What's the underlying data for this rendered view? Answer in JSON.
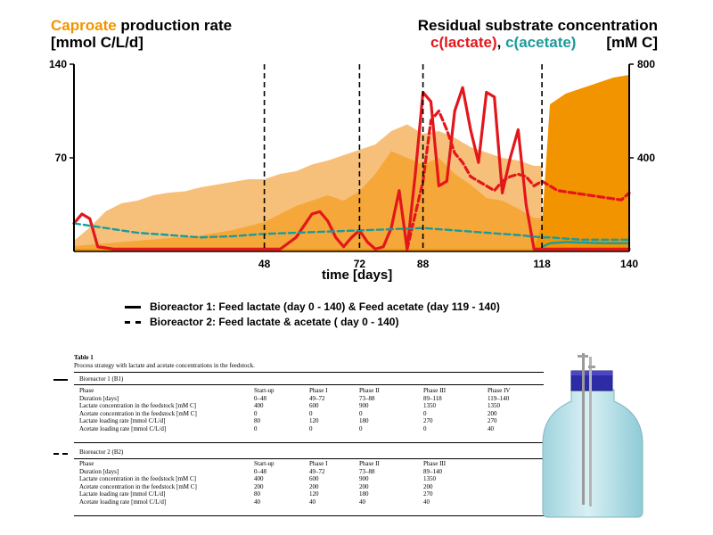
{
  "header": {
    "left_word_1": "Caproate",
    "left_word_2": " production rate",
    "left_unit": "[mmol C/L/d]",
    "right_title": "Residual substrate concentration",
    "right_lactate": "c(lactate)",
    "right_sep": ", ",
    "right_acetate": "c(acetate)",
    "right_unit": "[mM C]"
  },
  "legend": {
    "line1": "Bioreactor 1:   Feed lactate (day 0 - 140) &  Feed acetate (day 119 - 140)",
    "line2": "Bioreactor 2:   Feed lactate & acetate ( day 0 - 140)"
  },
  "colors": {
    "orange_dark": "#f29400",
    "orange_light": "#f7c07a",
    "orange_mid": "#f5a73a",
    "lactate": "#e3161b",
    "acetate": "#1a9b9b"
  },
  "chart_data": {
    "type": "area",
    "xlabel": "time [days]",
    "ylabel_left": "Caproate production rate [mmol C/L/d]",
    "ylabel_right": "Residual substrate concentration [mM C]",
    "xlim": [
      0,
      140
    ],
    "ylim_left": [
      0,
      140
    ],
    "ylim_right": [
      0,
      800
    ],
    "x_ticks": [
      48,
      72,
      88,
      118,
      140
    ],
    "y_left_ticks": [
      70,
      140
    ],
    "y_right_ticks": [
      400,
      800
    ],
    "phase_lines": [
      0,
      48,
      72,
      88,
      118
    ],
    "series": [
      {
        "name": "Caproate production rate",
        "axis": "left",
        "style": "area-light",
        "x": [
          0,
          4,
          8,
          12,
          16,
          20,
          24,
          28,
          32,
          36,
          40,
          44,
          48,
          52,
          56,
          60,
          64,
          68,
          72,
          76,
          80,
          84,
          88,
          92,
          96,
          100,
          104,
          108,
          112,
          116,
          118
        ],
        "y": [
          8,
          18,
          30,
          36,
          38,
          42,
          44,
          45,
          48,
          50,
          52,
          54,
          54,
          58,
          60,
          65,
          68,
          72,
          76,
          80,
          90,
          95,
          88,
          90,
          85,
          78,
          74,
          70,
          68,
          64,
          64
        ]
      },
      {
        "name": "Caproate production rate",
        "axis": "left",
        "style": "area-mid",
        "x": [
          0,
          8,
          16,
          24,
          32,
          40,
          48,
          56,
          64,
          68,
          72,
          76,
          80,
          84,
          88,
          92,
          96,
          100,
          104,
          108,
          112,
          116,
          118
        ],
        "y": [
          4,
          6,
          8,
          10,
          12,
          16,
          22,
          34,
          42,
          38,
          45,
          58,
          75,
          70,
          65,
          70,
          58,
          50,
          40,
          38,
          32,
          25,
          25
        ]
      },
      {
        "name": "Caproate production rate",
        "axis": "left",
        "style": "area-dark",
        "x": [
          0,
          20,
          40,
          48,
          52,
          56,
          60,
          64,
          68,
          72,
          76,
          80,
          84,
          88,
          92,
          96,
          100,
          104,
          108,
          112,
          116,
          118,
          120,
          124,
          128,
          132,
          136,
          140
        ],
        "y": [
          2,
          2,
          2,
          2,
          2,
          2,
          2,
          2,
          2,
          2,
          2,
          2,
          2,
          2,
          2,
          2,
          2,
          2,
          2,
          2,
          2,
          20,
          110,
          118,
          122,
          126,
          130,
          132
        ]
      },
      {
        "name": "c(lactate)",
        "axis": "right",
        "style": "solid",
        "x": [
          0,
          2,
          4,
          6,
          10,
          20,
          40,
          48,
          52,
          56,
          60,
          62,
          64,
          66,
          68,
          70,
          72,
          74,
          76,
          78,
          80,
          82,
          84,
          86,
          88,
          90,
          92,
          94,
          96,
          98,
          100,
          102,
          104,
          106,
          108,
          110,
          112,
          114,
          116,
          118,
          122,
          130,
          140
        ],
        "y": [
          120,
          160,
          140,
          20,
          10,
          10,
          10,
          10,
          10,
          60,
          160,
          170,
          130,
          60,
          20,
          60,
          90,
          40,
          10,
          20,
          100,
          260,
          10,
          320,
          680,
          640,
          280,
          300,
          600,
          700,
          520,
          380,
          680,
          660,
          250,
          400,
          520,
          200,
          10,
          10,
          10,
          10,
          10
        ]
      },
      {
        "name": "c(lactate)",
        "axis": "right",
        "style": "dashed",
        "x": [
          84,
          88,
          90,
          92,
          94,
          96,
          98,
          100,
          102,
          104,
          106,
          108,
          110,
          112,
          114,
          116,
          118,
          122,
          126,
          130,
          134,
          138,
          140
        ],
        "y": [
          10,
          300,
          560,
          600,
          520,
          420,
          380,
          320,
          300,
          280,
          260,
          300,
          320,
          330,
          320,
          280,
          300,
          260,
          250,
          240,
          230,
          220,
          250
        ]
      },
      {
        "name": "c(acetate)",
        "axis": "right",
        "style": "dashed",
        "x": [
          0,
          8,
          16,
          24,
          32,
          40,
          48,
          56,
          64,
          72,
          80,
          88,
          96,
          104,
          112,
          118,
          120,
          124,
          128,
          132,
          136,
          140
        ],
        "y": [
          120,
          100,
          80,
          70,
          60,
          65,
          75,
          80,
          85,
          90,
          95,
          100,
          90,
          80,
          70,
          60,
          60,
          55,
          50,
          50,
          50,
          50
        ]
      },
      {
        "name": "c(acetate)",
        "axis": "right",
        "style": "solid",
        "x": [
          118,
          120,
          124,
          128,
          132,
          136,
          140
        ],
        "y": [
          20,
          35,
          40,
          38,
          36,
          35,
          35
        ]
      }
    ]
  },
  "table": {
    "title": "Table 1",
    "caption": "Process strategy with lactate and acetate concentrations in the feedstock.",
    "br1_label": "Bioreactor 1 (B1)",
    "br2_label": "Bioreactor 2 (B2)",
    "br1_header": [
      "Phase",
      "Start-up",
      "Phase I",
      "Phase II",
      "Phase III",
      "Phase IV"
    ],
    "br1_rows": [
      [
        "Duration [days]",
        "0–48",
        "49–72",
        "73–88",
        "89–118",
        "119–140"
      ],
      [
        "Lactate concentration in the feedstock [mM C]",
        "400",
        "600",
        "900",
        "1350",
        "1350"
      ],
      [
        "Acetate concentration in the feedstock [mM C]",
        "0",
        "0",
        "0",
        "0",
        "200"
      ],
      [
        "Lactate loading rate [mmol C/L/d]",
        "80",
        "120",
        "180",
        "270",
        "270"
      ],
      [
        "Acetate loading rate [mmol C/L/d]",
        "0",
        "0",
        "0",
        "0",
        "40"
      ]
    ],
    "br2_header": [
      "Phase",
      "Start-up",
      "Phase I",
      "Phase II",
      "Phase III",
      ""
    ],
    "br2_rows": [
      [
        "Duration [days]",
        "0–48",
        "49–72",
        "73–88",
        "89–140",
        ""
      ],
      [
        "Lactate concentration in the feedstock [mM C]",
        "400",
        "600",
        "900",
        "1350",
        ""
      ],
      [
        "Acetate concentration in the feedstock [mM C]",
        "200",
        "200",
        "200",
        "200",
        ""
      ],
      [
        "Lactate loading rate [mmol C/L/d]",
        "80",
        "120",
        "180",
        "270",
        ""
      ],
      [
        "Acetate loading rate [mmol C/L/d]",
        "40",
        "40",
        "40",
        "40",
        ""
      ]
    ]
  }
}
